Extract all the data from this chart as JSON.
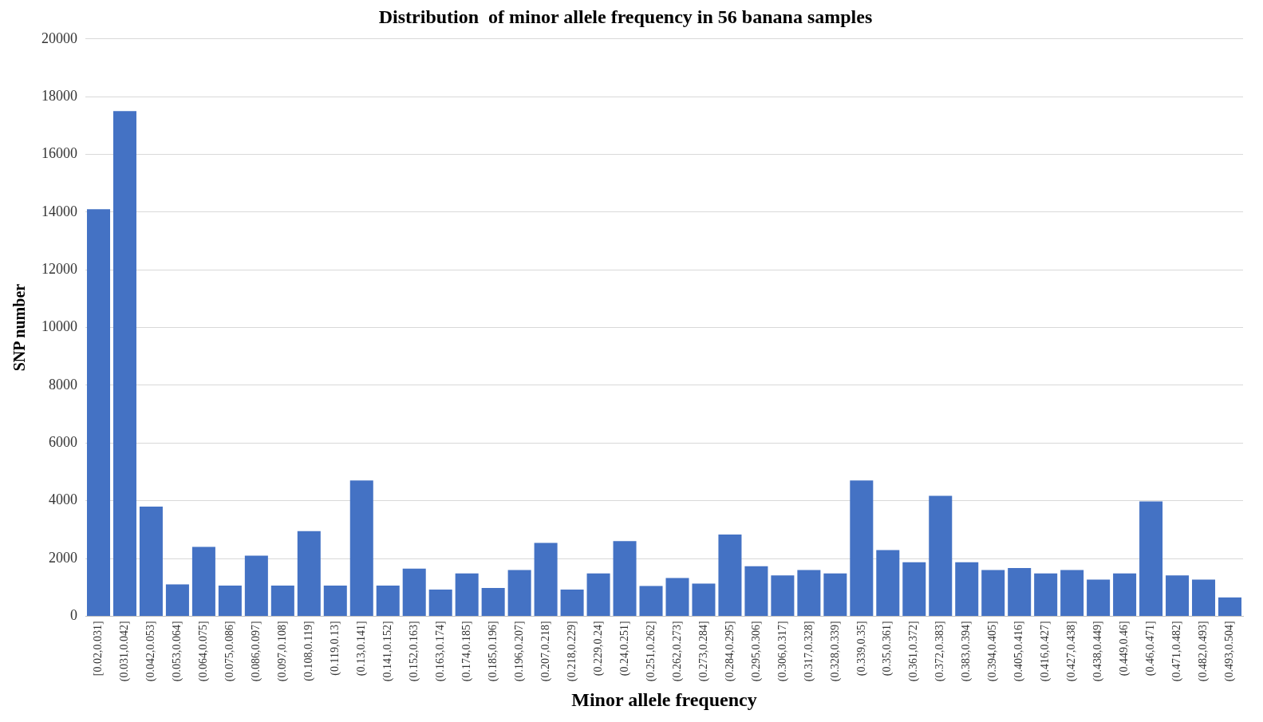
{
  "chart_data": {
    "type": "bar",
    "title": "Distribution  of minor allele frequency in 56 banana samples",
    "xlabel": "Minor allele frequency",
    "ylabel": "SNP number",
    "categories": [
      "[0.02,0.031]",
      "(0.031,0.042]",
      "(0.042,0.053]",
      "(0.053,0.064]",
      "(0.064,0.075]",
      "(0.075,0.086]",
      "(0.086,0.097]",
      "(0.097,0.108]",
      "(0.108,0.119]",
      "(0.119,0.13]",
      "(0.13,0.141]",
      "(0.141,0.152]",
      "(0.152,0.163]",
      "(0.163,0.174]",
      "(0.174,0.185]",
      "(0.185,0.196]",
      "(0.196,0.207]",
      "(0.207,0.218]",
      "(0.218,0.229]",
      "(0.229,0.24]",
      "(0.24,0.251]",
      "(0.251,0.262]",
      "(0.262,0.273]",
      "(0.273,0.284]",
      "(0.284,0.295]",
      "(0.295,0.306]",
      "(0.306,0.317]",
      "(0.317,0.328]",
      "(0.328,0.339]",
      "(0.339,0.35]",
      "(0.35,0.361]",
      "(0.361,0.372]",
      "(0.372,0.383]",
      "(0.383,0.394]",
      "(0.394,0.405]",
      "(0.405,0.416]",
      "(0.416,0.427]",
      "(0.427,0.438]",
      "(0.438,0.449]",
      "(0.449,0.46]",
      "(0.46,0.471]",
      "(0.471,0.482]",
      "(0.482,0.493]",
      "(0.493,0.504]"
    ],
    "values": [
      14100,
      17500,
      3800,
      1100,
      2400,
      1060,
      2100,
      1060,
      2950,
      1060,
      4700,
      1060,
      1650,
      920,
      1480,
      980,
      1600,
      2540,
      920,
      1480,
      2600,
      1050,
      1320,
      1130,
      2830,
      1730,
      1410,
      1600,
      1480,
      4700,
      2290,
      1870,
      4170,
      1870,
      1600,
      1670,
      1480,
      1600,
      1270,
      1480,
      3980,
      1410,
      1270,
      650
    ],
    "color": "#4472c4",
    "ylim": [
      0,
      20000
    ],
    "yticks": [
      0,
      2000,
      4000,
      6000,
      8000,
      10000,
      12000,
      14000,
      16000,
      18000,
      20000
    ],
    "grid": "y"
  }
}
